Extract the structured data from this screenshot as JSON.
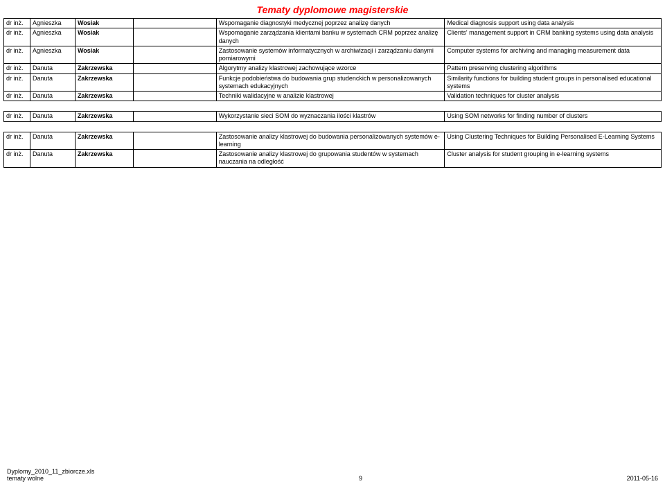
{
  "title": "Tematy dyplomowe magisterskie",
  "rows1": [
    {
      "t": "dr inż.",
      "fn": "Agnieszka",
      "ln": "Wosiak",
      "pl": "Wspomaganie diagnostyki medycznej poprzez analizę danych",
      "en": "Medical diagnosis support using data analysis"
    },
    {
      "t": "dr inż.",
      "fn": "Agnieszka",
      "ln": "Wosiak",
      "pl": "Wspomaganie zarządzania klientami banku w systemach CRM poprzez analizę danych",
      "en": "Clients' management support in CRM banking systems using data analysis"
    },
    {
      "t": "dr inż.",
      "fn": "Agnieszka",
      "ln": "Wosiak",
      "pl": "Zastosowanie systemów informatycznych w archiwizacji i zarządzaniu danymi pomiarowymi",
      "en": "Computer systems for archiving and managing measurement data"
    },
    {
      "t": "dr inż.",
      "fn": "Danuta",
      "ln": "Zakrzewska",
      "pl": "Algorytmy analizy klastrowej zachowujące wzorce",
      "en": "Pattern preserving clustering algorithms"
    },
    {
      "t": "dr inż.",
      "fn": "Danuta",
      "ln": "Zakrzewska",
      "pl": "Funkcje podobieństwa do budowania grup studenckich w personalizowanych systemach edukacyjnych",
      "en": "Similarity functions for building student groups in personalised educational systems"
    },
    {
      "t": "dr inż.",
      "fn": "Danuta",
      "ln": "Zakrzewska",
      "pl": "Techniki walidacyjne w analizie klastrowej",
      "en": "Validation techniques for cluster analysis"
    }
  ],
  "rows2": [
    {
      "t": "dr inż.",
      "fn": "Danuta",
      "ln": "Zakrzewska",
      "pl": "Wykorzystanie sieci SOM do wyznaczania ilości klastrów",
      "en": "Using SOM networks for finding number of clusters"
    }
  ],
  "rows3": [
    {
      "t": "dr inż.",
      "fn": "Danuta",
      "ln": "Zakrzewska",
      "pl": "Zastosowanie analizy klastrowej do budowania personalizowanych systemów e-learning",
      "en": "Using Clustering Techniques for Building Personalised E-Learning Systems"
    },
    {
      "t": "dr inż.",
      "fn": "Danuta",
      "ln": "Zakrzewska",
      "pl": "Zastosowanie analizy klastrowej do grupowania studentów w systemach nauczania na odległość",
      "en": "Cluster analysis for student grouping in e-learning systems"
    }
  ],
  "footer": {
    "file": "Dyplomy_2010_11_zbiorcze.xls",
    "sheet": "tematy wolne",
    "page": "9",
    "date": "2011-05-16"
  }
}
